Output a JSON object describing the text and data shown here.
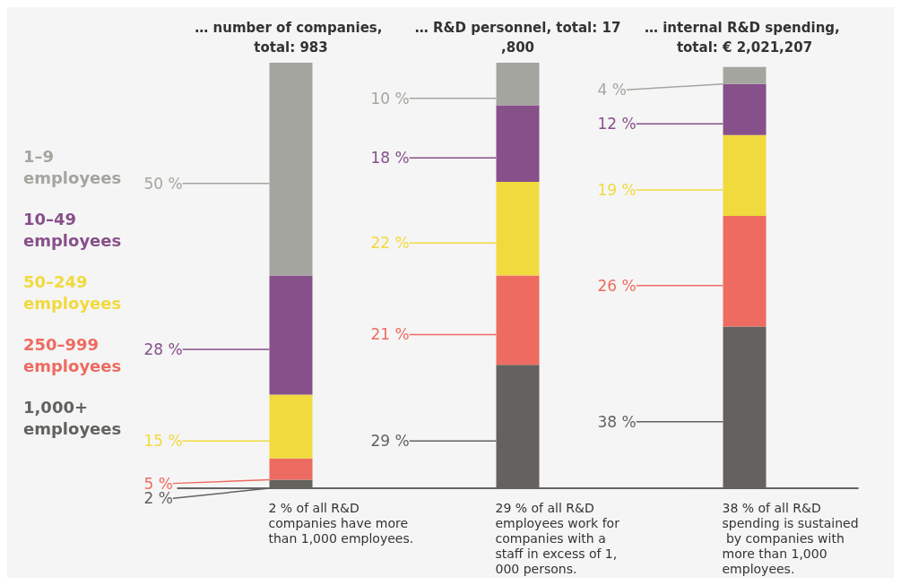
{
  "chart_data": {
    "type": "bar",
    "stacked": true,
    "categories": [
      "… number of companies, total: 983",
      "… R&D personnel, total: 17,800",
      "… internal R&D spending, total: € 2,021,207"
    ],
    "series": [
      {
        "name": "1,000+ employees",
        "color": "#63625e",
        "values": [
          2,
          29,
          38
        ],
        "value_labels": [
          "2 %",
          "29 %",
          "38 %"
        ]
      },
      {
        "name": "250–999 employees",
        "color": "#ee6b61",
        "values": [
          5,
          21,
          26
        ],
        "value_labels": [
          "5 %",
          "21 %",
          "26 %"
        ]
      },
      {
        "name": "50–249 employees",
        "color": "#f0da3e",
        "values": [
          15,
          22,
          19
        ],
        "value_labels": [
          "15 %",
          "22 %",
          "19 %"
        ]
      },
      {
        "name": "10–49 employees",
        "color": "#87508a",
        "values": [
          28,
          18,
          12
        ],
        "value_labels": [
          "28 %",
          "18 %",
          "12 %"
        ]
      },
      {
        "name": "1–9 employees",
        "color": "#a5a59f",
        "values": [
          50,
          10,
          4
        ],
        "value_labels": [
          "50 %",
          "10 %",
          "4 %"
        ]
      }
    ],
    "legend": "left",
    "annotations": [
      "2 % of all R&D companies have more than 1,000 employees.",
      "29 % of all R&D employees work for companies with a staff in excess of 1,000 persons.",
      "38 % of all R&D spending is sustained by companies with more than 1,000 employees."
    ]
  }
}
